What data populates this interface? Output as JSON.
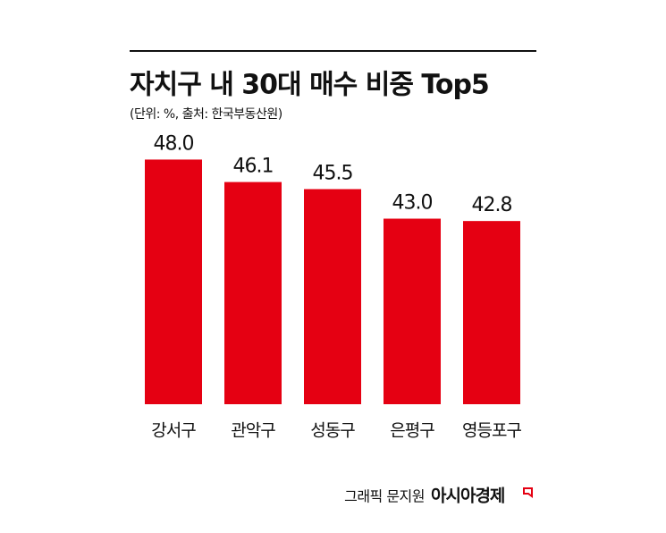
{
  "chart_data": {
    "type": "bar",
    "title": "자치구 내 30대 매수 비중 Top5",
    "subtitle": "(단위: %, 출처: 한국부동산원)",
    "categories": [
      "강서구",
      "관악구",
      "성동구",
      "은평구",
      "영등포구"
    ],
    "values": [
      48.0,
      46.1,
      45.5,
      43.0,
      42.8
    ],
    "value_labels": [
      "48.0",
      "46.1",
      "45.5",
      "43.0",
      "42.8"
    ],
    "color": "#e50012",
    "ylim": [
      27.3,
      50
    ],
    "credit": "그래픽 문지원",
    "brand": "아시아경제"
  }
}
